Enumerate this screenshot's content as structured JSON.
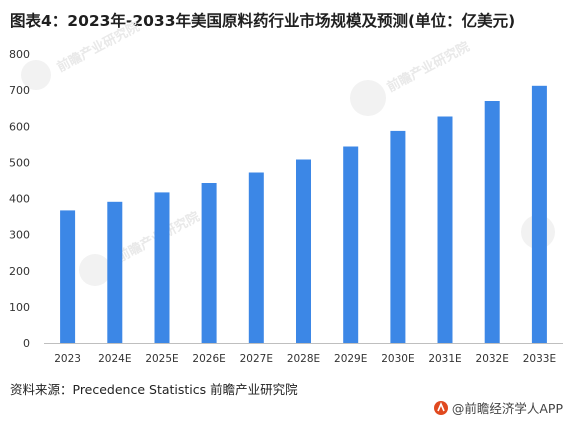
{
  "chart_data": {
    "type": "bar",
    "title": "图表4：2023年-2033年美国原料药行业市场规模及预测(单位：亿美元)",
    "categories": [
      "2023",
      "2024E",
      "2025E",
      "2026E",
      "2027E",
      "2028E",
      "2029E",
      "2030E",
      "2031E",
      "2032E",
      "2033E"
    ],
    "values": [
      367,
      391,
      417,
      443,
      472,
      508,
      544,
      587,
      627,
      670,
      712
    ],
    "ylim": [
      0,
      800
    ],
    "yticks": [
      "0",
      "100",
      "200",
      "300",
      "400",
      "500",
      "600",
      "700",
      "800"
    ],
    "bar_color": "#3c87e6",
    "grid": false,
    "xlabel": "",
    "ylabel": ""
  },
  "source": "资料来源：Precedence Statistics 前瞻产业研究院",
  "footer": {
    "brand": "@前瞻经济学人APP",
    "brand_icon": "qianzhan-logo-icon",
    "brand_color": "#e0491f"
  },
  "watermark": {
    "text": "前瞻产业研究院",
    "icon": "qianzhan-watermark-icon"
  }
}
